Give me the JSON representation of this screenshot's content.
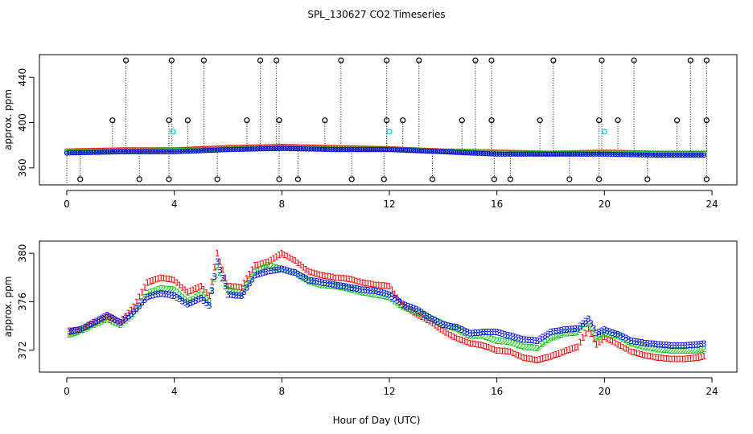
{
  "title": "SPL_130627  CO2 Timeseries",
  "xlabel": "Hour of Day (UTC)",
  "colors": {
    "series1": "#ff0000",
    "series2": "#00cd00",
    "series3": "#0000ff",
    "outlier": "#000000",
    "highlight": "#00cccc",
    "axis": "#000000"
  },
  "chart_data": [
    {
      "type": "scatter",
      "title": "SPL_130627  CO2 Timeseries",
      "ylabel": "approx. ppm",
      "xlim": [
        0,
        24
      ],
      "ylim": [
        345,
        460
      ],
      "xticks": [
        "0",
        "4",
        "8",
        "12",
        "16",
        "20",
        "24"
      ],
      "yticks": [
        "360",
        "400",
        "440"
      ],
      "ytick_values": [
        360,
        400,
        440
      ],
      "series": [
        {
          "name": "1",
          "x": [
            0.0,
            2,
            4,
            6,
            8,
            10,
            12,
            14,
            16,
            18,
            20,
            22,
            23.8
          ],
          "y": [
            375,
            376,
            376,
            378,
            379,
            378,
            377,
            375,
            374,
            373,
            374,
            373,
            373
          ]
        },
        {
          "name": "2",
          "x": [
            0.0,
            2,
            4,
            6,
            8,
            10,
            12,
            14,
            16,
            18,
            20,
            22,
            23.8
          ],
          "y": [
            375,
            375,
            376,
            377,
            378,
            377,
            377,
            375,
            374,
            373,
            374,
            373,
            373
          ]
        },
        {
          "name": "3",
          "x": [
            0.0,
            2,
            4,
            6,
            8,
            10,
            12,
            14,
            16,
            18,
            20,
            22,
            23.8
          ],
          "y": [
            374,
            375,
            375,
            377,
            378,
            377,
            377,
            375,
            373,
            373,
            373,
            372,
            372
          ]
        }
      ],
      "outliers_high": [
        2.2,
        3.9,
        5.1,
        7.2,
        7.8,
        10.2,
        11.9,
        13.1,
        15.2,
        15.8,
        18.1,
        19.9,
        21.1,
        23.2,
        23.8
      ],
      "outliers_mid": [
        1.7,
        3.8,
        4.5,
        6.7,
        7.9,
        9.6,
        11.9,
        12.5,
        14.7,
        15.8,
        17.6,
        19.8,
        20.5,
        22.7,
        23.8
      ],
      "outliers_low": [
        0.5,
        2.7,
        3.8,
        5.6,
        7.9,
        8.6,
        10.6,
        11.8,
        13.6,
        15.9,
        16.5,
        18.7,
        19.8,
        21.6,
        23.8
      ],
      "outlier_high_value": 455,
      "outlier_mid_value": 402,
      "outlier_low_value": 350,
      "highlight_points": [
        {
          "x": 3.95,
          "y": 392
        },
        {
          "x": 12.0,
          "y": 392
        },
        {
          "x": 20.0,
          "y": 392
        }
      ]
    },
    {
      "type": "scatter",
      "ylabel": "approx. ppm",
      "xlim": [
        0,
        24
      ],
      "ylim": [
        370.2,
        381
      ],
      "xticks": [
        "0",
        "4",
        "8",
        "12",
        "16",
        "20",
        "24"
      ],
      "yticks": [
        "372",
        "376",
        "380"
      ],
      "ytick_values": [
        372,
        376,
        380
      ],
      "x": [
        0.1,
        0.5,
        1.0,
        1.5,
        2.0,
        2.5,
        3.0,
        3.5,
        4.0,
        4.5,
        5.0,
        5.3,
        5.6,
        6.0,
        6.5,
        7.0,
        7.5,
        8.0,
        8.5,
        9.0,
        9.5,
        10.0,
        10.5,
        11.0,
        11.5,
        12.0,
        12.5,
        13.0,
        13.5,
        14.0,
        14.5,
        15.0,
        15.5,
        16.0,
        16.5,
        17.0,
        17.5,
        18.0,
        18.5,
        19.0,
        19.4,
        19.7,
        20.0,
        20.5,
        21.0,
        21.5,
        22.0,
        22.5,
        23.0,
        23.5,
        23.8
      ],
      "series": [
        {
          "name": "1",
          "y": [
            373.5,
            373.7,
            374.2,
            374.8,
            374.3,
            375.6,
            377.6,
            378.0,
            377.8,
            376.8,
            377.3,
            376.5,
            380.0,
            377.3,
            377.2,
            379.0,
            379.3,
            380.0,
            379.4,
            378.5,
            378.2,
            378.0,
            377.9,
            377.6,
            377.4,
            377.3,
            375.7,
            375.0,
            374.4,
            373.6,
            373.0,
            372.6,
            372.4,
            372.0,
            371.9,
            371.4,
            371.2,
            371.5,
            371.9,
            372.3,
            373.8,
            372.5,
            373.1,
            372.5,
            371.9,
            371.6,
            371.4,
            371.3,
            371.3,
            371.4,
            371.6
          ]
        },
        {
          "name": "2",
          "y": [
            373.3,
            373.6,
            374.1,
            374.6,
            374.1,
            375.0,
            376.7,
            377.1,
            377.0,
            376.0,
            376.6,
            376.0,
            378.9,
            377.0,
            376.7,
            378.4,
            379.0,
            378.7,
            378.4,
            377.7,
            377.4,
            377.3,
            377.1,
            376.8,
            376.6,
            376.4,
            375.6,
            375.2,
            374.7,
            374.2,
            373.8,
            373.2,
            373.2,
            372.8,
            372.7,
            372.3,
            372.2,
            373.0,
            373.4,
            373.5,
            374.4,
            373.0,
            373.4,
            373.2,
            372.6,
            372.3,
            372.1,
            372.0,
            372.0,
            372.0,
            372.2
          ]
        },
        {
          "name": "3",
          "y": [
            373.6,
            373.7,
            374.3,
            374.9,
            374.3,
            375.2,
            376.4,
            376.7,
            376.5,
            375.8,
            376.3,
            375.7,
            379.3,
            376.6,
            376.5,
            378.2,
            378.5,
            378.7,
            378.4,
            377.8,
            377.6,
            377.4,
            377.2,
            377.0,
            376.9,
            376.6,
            375.8,
            375.4,
            374.7,
            374.1,
            373.9,
            373.4,
            373.5,
            373.5,
            373.2,
            372.9,
            372.8,
            373.5,
            373.7,
            373.8,
            374.6,
            373.4,
            373.7,
            373.3,
            372.8,
            372.6,
            372.5,
            372.4,
            372.4,
            372.5,
            372.6
          ]
        }
      ]
    }
  ]
}
